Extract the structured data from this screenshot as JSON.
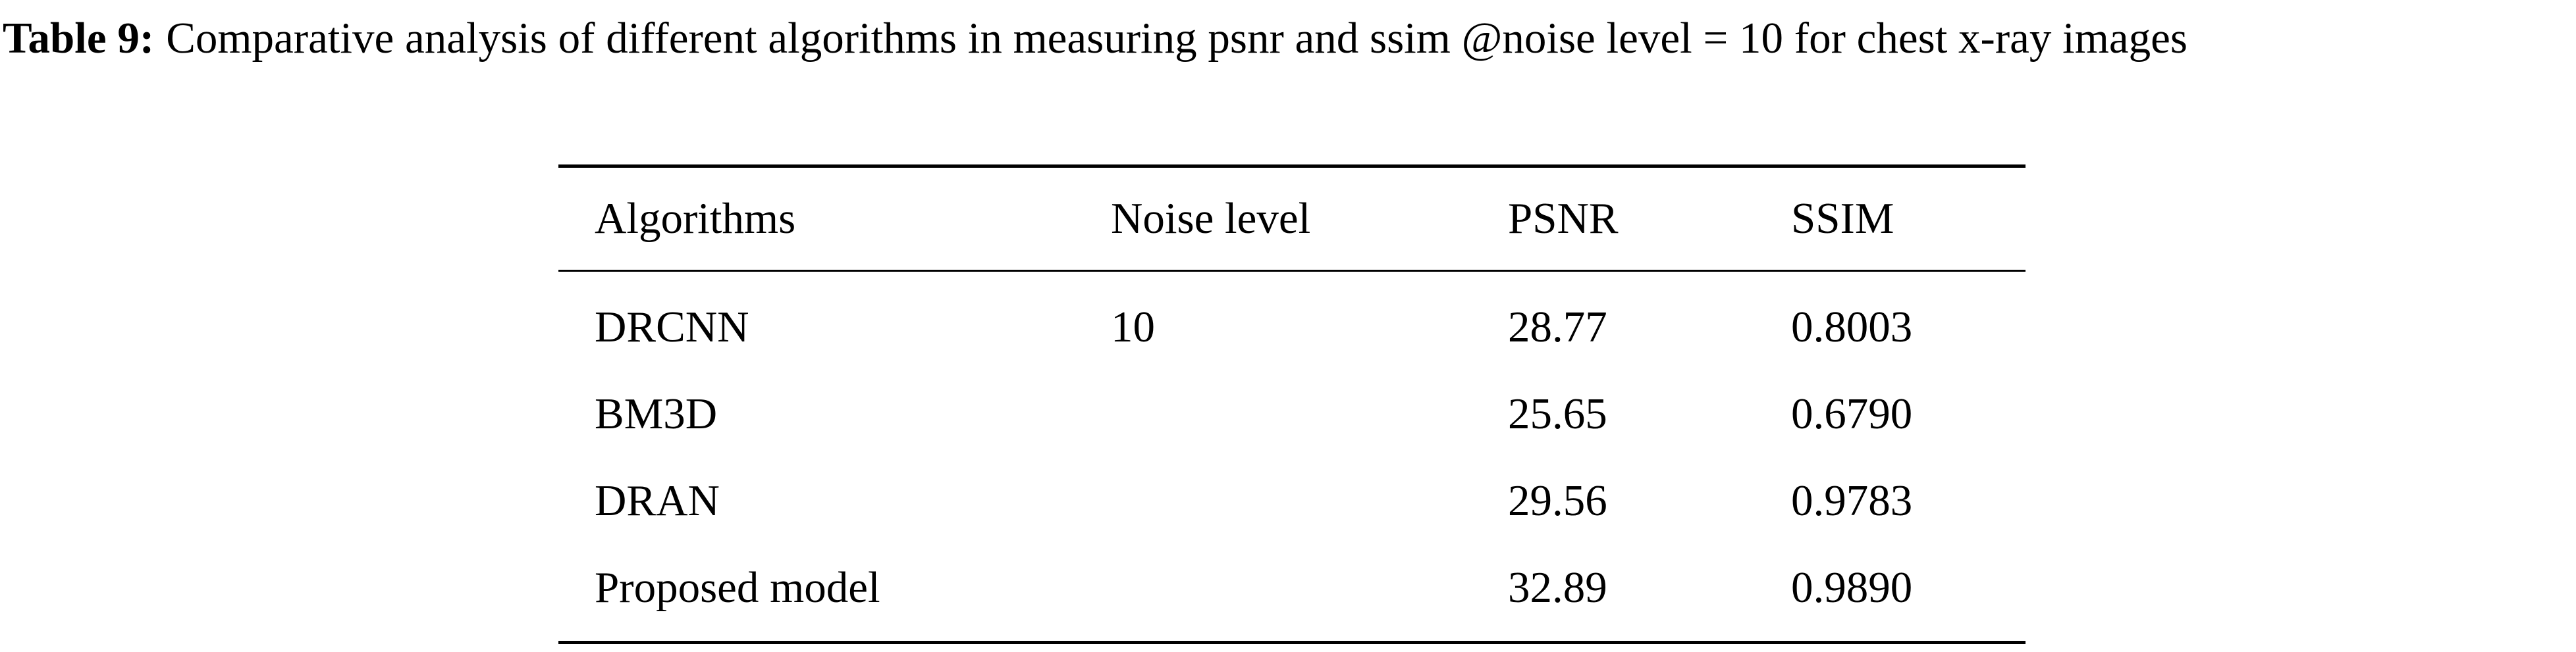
{
  "caption": {
    "label": "Table 9:",
    "text": "Comparative analysis of different algorithms in measuring psnr and ssim @noise level = 10 for chest x-ray images"
  },
  "table": {
    "columns": [
      "Algorithms",
      "Noise level",
      "PSNR",
      "SSIM"
    ],
    "rows": [
      {
        "algorithm": "DRCNN",
        "noise_level": "10",
        "psnr": "28.77",
        "ssim": "0.8003"
      },
      {
        "algorithm": "BM3D",
        "psnr": "25.65",
        "ssim": "0.6790"
      },
      {
        "algorithm": "DRAN",
        "psnr": "29.56",
        "ssim": "0.9783"
      },
      {
        "algorithm": "Proposed model",
        "psnr": "32.89",
        "ssim": "0.9890"
      }
    ]
  }
}
